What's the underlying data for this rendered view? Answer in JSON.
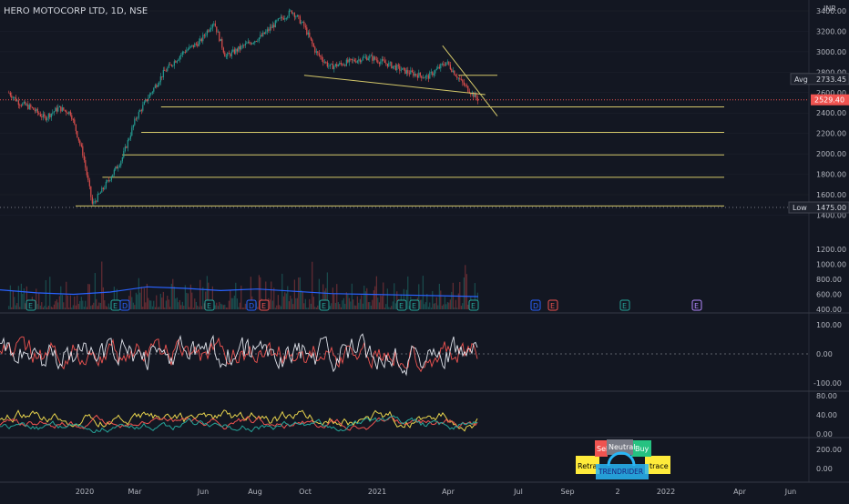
{
  "header": {
    "symbol_title": "HERO MOTOCORP LTD, 1D, NSE"
  },
  "price_axis": {
    "currency": "INR",
    "ticks": [
      3400,
      3200,
      3000,
      2800,
      2600,
      2400,
      2200,
      2000,
      1800,
      1600,
      1400
    ],
    "tick_labels": [
      "3400.00",
      "3200.00",
      "3000.00",
      "2800.00",
      "2600.00",
      "2400.00",
      "2200.00",
      "2000.00",
      "1800.00",
      "1600.00",
      "1400.00"
    ]
  },
  "badges": {
    "avg_label": "Avg",
    "avg_value": "2733.45",
    "last_value": "2529.40",
    "low_label": "Low",
    "low_value": "1475.00"
  },
  "volume_axis": {
    "ticks": [
      1200,
      1000,
      800,
      600,
      400
    ],
    "tick_labels": [
      "1200.00",
      "1000.00",
      "800.00",
      "600.00",
      "400.00"
    ]
  },
  "osc1_axis": {
    "tick_labels": [
      "100.00",
      "0.00",
      "-100.00"
    ]
  },
  "osc2_axis": {
    "tick_labels": [
      "80.00",
      "40.00",
      "0.00"
    ]
  },
  "osc3_axis": {
    "tick_labels": [
      "200.00",
      "0.00"
    ]
  },
  "time_axis": {
    "labels": [
      "2020",
      "Mar",
      "Jun",
      "Aug",
      "Oct",
      "2021",
      "Apr",
      "Jul",
      "Sep",
      "2",
      "2022",
      "Apr",
      "Jun"
    ]
  },
  "event_markers": {
    "earnings_letter": "E",
    "dividend_letter": "D"
  },
  "gauge": {
    "sell": "Sell",
    "neutral": "Neutral",
    "buy": "Buy",
    "left_tag": "Retrac",
    "right_tag": "trace",
    "center_tag": "TRENDRIDER"
  },
  "colors": {
    "background": "#131722",
    "up": "#26a69a",
    "down": "#ef5350",
    "support_line": "#d4c86a",
    "volume_ma": "#2962ff",
    "grid": "#2a2e39"
  },
  "chart_data": {
    "type": "candlestick",
    "title": "HERO MOTOCORP LTD, 1D, NSE",
    "x_range": [
      "2019-11",
      "2022-06"
    ],
    "ylim": [
      1400,
      3500
    ],
    "price_points": [
      {
        "date": "2019-11-15",
        "close": 2600
      },
      {
        "date": "2019-12-01",
        "close": 2500
      },
      {
        "date": "2019-12-20",
        "close": 2450
      },
      {
        "date": "2020-01-10",
        "close": 2350
      },
      {
        "date": "2020-02-01",
        "close": 2450
      },
      {
        "date": "2020-02-20",
        "close": 2400
      },
      {
        "date": "2020-03-10",
        "close": 2000
      },
      {
        "date": "2020-03-25",
        "close": 1500
      },
      {
        "date": "2020-04-15",
        "close": 1700
      },
      {
        "date": "2020-05-10",
        "close": 1950
      },
      {
        "date": "2020-06-01",
        "close": 2350
      },
      {
        "date": "2020-06-20",
        "close": 2550
      },
      {
        "date": "2020-07-15",
        "close": 2800
      },
      {
        "date": "2020-08-15",
        "close": 3000
      },
      {
        "date": "2020-09-10",
        "close": 3100
      },
      {
        "date": "2020-10-01",
        "close": 3300
      },
      {
        "date": "2020-10-20",
        "close": 2950
      },
      {
        "date": "2020-11-15",
        "close": 3050
      },
      {
        "date": "2020-12-15",
        "close": 3150
      },
      {
        "date": "2021-01-10",
        "close": 3300
      },
      {
        "date": "2021-02-01",
        "close": 3400
      },
      {
        "date": "2021-02-20",
        "close": 3250
      },
      {
        "date": "2021-03-10",
        "close": 3000
      },
      {
        "date": "2021-04-01",
        "close": 2850
      },
      {
        "date": "2021-05-01",
        "close": 2900
      },
      {
        "date": "2021-06-01",
        "close": 2950
      },
      {
        "date": "2021-07-01",
        "close": 2880
      },
      {
        "date": "2021-08-01",
        "close": 2800
      },
      {
        "date": "2021-09-01",
        "close": 2750
      },
      {
        "date": "2021-10-01",
        "close": 2900
      },
      {
        "date": "2021-10-25",
        "close": 2700
      },
      {
        "date": "2021-11-20",
        "close": 2529.4
      }
    ],
    "support_levels": [
      2460,
      2210,
      1990,
      1770,
      1490
    ],
    "trend_lines": [
      {
        "from": {
          "date": "2021-02-20",
          "price": 2770
        },
        "to": {
          "date": "2021-12-01",
          "price": 2580
        }
      },
      {
        "from": {
          "date": "2021-09-25",
          "price": 3060
        },
        "to": {
          "date": "2021-12-20",
          "price": 2370
        }
      }
    ],
    "horizontal_lines": [
      {
        "price": 2770,
        "from": "2021-10-20",
        "to": "2021-12-20"
      }
    ],
    "volume": {
      "ma_values": [
        660,
        620,
        600,
        630,
        700,
        680,
        650,
        670,
        640,
        610,
        600,
        590,
        580,
        570
      ],
      "ylim": [
        400,
        1300
      ]
    },
    "grid": true
  }
}
